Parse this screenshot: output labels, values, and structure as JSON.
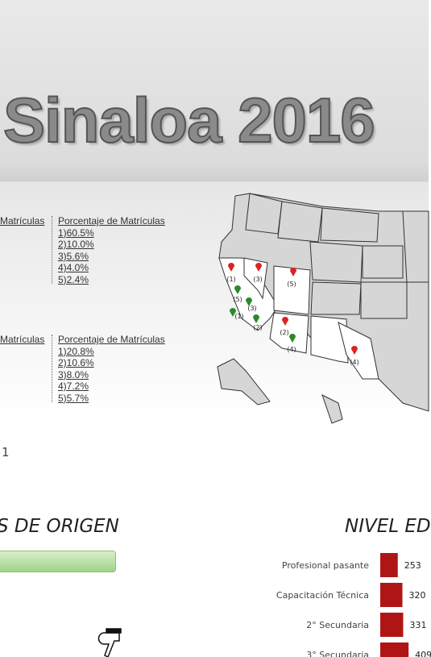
{
  "header": {
    "title": "Sinaloa 2016"
  },
  "lists": [
    {
      "left_header": "Matrículas",
      "header": "Porcentaje de Matrículas",
      "items": [
        "1)60.5%",
        "2)10.0%",
        "3)5.6%",
        "4)4.0%",
        "5)2.4%"
      ]
    },
    {
      "left_header": "Matrículas",
      "header": "Porcentaje de Matrículas",
      "items": [
        "1)20.8%",
        "2)10.6%",
        "3)8.0%",
        "4)7.2%",
        "5)5.7%"
      ]
    }
  ],
  "map": {
    "markers": [
      "(1)",
      "(3)",
      "(5)",
      "(5)",
      "(3)",
      "(1)",
      "(2)",
      "(2)",
      "(4)",
      "(4)"
    ]
  },
  "page_number": "1",
  "origin_section": {
    "title": "S DE ORIGEN"
  },
  "chart_data": {
    "type": "bar",
    "title": "NIVEL ED",
    "categories": [
      "Profesional pasante",
      "Capacitación Técnica",
      "2° Secundaria",
      "3° Secundaria"
    ],
    "values": [
      253,
      320,
      331,
      409
    ],
    "color": "#b01515"
  }
}
